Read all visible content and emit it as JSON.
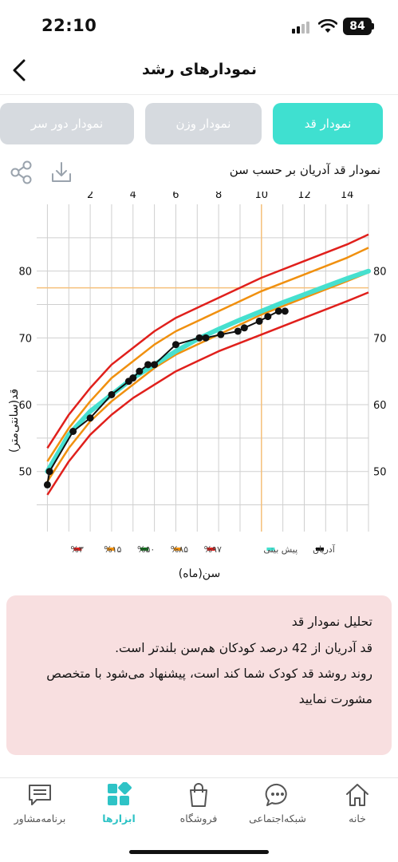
{
  "status_bar": {
    "time": "22:10",
    "battery": "84"
  },
  "header": {
    "title": "نمودارهای رشد"
  },
  "tabs": [
    {
      "label": "نمودار قد",
      "active": true
    },
    {
      "label": "نمودار وزن",
      "active": false
    },
    {
      "label": "نمودار دور سر",
      "active": false
    }
  ],
  "toolbar": {
    "chart_title": "نمودار قد آدریان بر حسب سن"
  },
  "chart_data": {
    "type": "line",
    "xlabel": "سن(ماه)",
    "ylabel": "قد(سانتی‌متر)",
    "x_ticks": [
      2,
      4,
      6,
      8,
      10,
      12,
      14
    ],
    "y_ticks": [
      50,
      60,
      70,
      80
    ],
    "xlim": [
      -0.5,
      15
    ],
    "ylim": [
      41,
      90
    ],
    "grid": true,
    "legend_position": "bottom",
    "marker_x": 10,
    "marker_y": 77.5,
    "percentile_curves": [
      {
        "name": "%۳",
        "color": "#e0201c",
        "points": [
          [
            0,
            46.5
          ],
          [
            1,
            51.5
          ],
          [
            2,
            55.5
          ],
          [
            3,
            58.5
          ],
          [
            4,
            61
          ],
          [
            5,
            63
          ],
          [
            6,
            65
          ],
          [
            8,
            68
          ],
          [
            10,
            70.5
          ],
          [
            12,
            73
          ],
          [
            14,
            75.5
          ],
          [
            15,
            76.8
          ]
        ]
      },
      {
        "name": "%۱۵",
        "color": "#f0900f",
        "points": [
          [
            0,
            48.5
          ],
          [
            1,
            53.5
          ],
          [
            2,
            57.5
          ],
          [
            3,
            60.5
          ],
          [
            4,
            63
          ],
          [
            5,
            65.5
          ],
          [
            6,
            67.5
          ],
          [
            8,
            70.5
          ],
          [
            10,
            73.5
          ],
          [
            12,
            76
          ],
          [
            14,
            78.5
          ],
          [
            15,
            79.8
          ]
        ]
      },
      {
        "name": "%۸۵",
        "color": "#f0900f",
        "points": [
          [
            0,
            51.5
          ],
          [
            1,
            56.5
          ],
          [
            2,
            60.5
          ],
          [
            3,
            64
          ],
          [
            4,
            66.5
          ],
          [
            5,
            69
          ],
          [
            6,
            71
          ],
          [
            8,
            74
          ],
          [
            10,
            77
          ],
          [
            12,
            79.5
          ],
          [
            14,
            82
          ],
          [
            15,
            83.5
          ]
        ]
      },
      {
        "name": "%۹۷",
        "color": "#e0201c",
        "points": [
          [
            0,
            53.5
          ],
          [
            1,
            58.5
          ],
          [
            2,
            62.5
          ],
          [
            3,
            66
          ],
          [
            4,
            68.5
          ],
          [
            5,
            71
          ],
          [
            6,
            73
          ],
          [
            8,
            76
          ],
          [
            10,
            79
          ],
          [
            12,
            81.5
          ],
          [
            14,
            84
          ],
          [
            15,
            85.5
          ]
        ]
      }
    ],
    "series": [
      {
        "name": "%۵۰",
        "color": "#0e6e1a",
        "values": []
      },
      {
        "name": "پیش بینی",
        "color": "#46e0cf",
        "points": [
          [
            0,
            50
          ],
          [
            1,
            55.5
          ],
          [
            2,
            59
          ],
          [
            3,
            61.5
          ],
          [
            4,
            64
          ],
          [
            5,
            66
          ],
          [
            6,
            68
          ],
          [
            7,
            69.8
          ],
          [
            8,
            71.3
          ],
          [
            9,
            72.7
          ],
          [
            10,
            74
          ],
          [
            11,
            75.3
          ],
          [
            12,
            76.5
          ],
          [
            13,
            77.7
          ],
          [
            14,
            78.9
          ],
          [
            15,
            80
          ]
        ]
      },
      {
        "name": "آدریان",
        "color": "#111111",
        "points": [
          [
            0,
            48
          ],
          [
            0.1,
            50
          ],
          [
            1.2,
            56
          ],
          [
            2,
            58
          ],
          [
            3,
            61.5
          ],
          [
            3.8,
            63.5
          ],
          [
            4,
            64
          ],
          [
            4.3,
            65
          ],
          [
            4.7,
            66
          ],
          [
            5,
            66
          ],
          [
            6,
            69
          ],
          [
            7.1,
            70
          ],
          [
            7.4,
            70
          ],
          [
            8.1,
            70.5
          ],
          [
            8.9,
            71
          ],
          [
            9.2,
            71.5
          ],
          [
            9.9,
            72.5
          ],
          [
            10.3,
            73.2
          ],
          [
            10.8,
            74
          ],
          [
            11.1,
            74
          ]
        ]
      }
    ],
    "legend": [
      {
        "name": "%۳",
        "color": "#e0201c"
      },
      {
        "name": "%۱۵",
        "color": "#f0900f"
      },
      {
        "name": "%۵۰",
        "color": "#0e6e1a"
      },
      {
        "name": "%۸۵",
        "color": "#f0900f"
      },
      {
        "name": "%۹۷",
        "color": "#e0201c"
      },
      {
        "name": "پیش بینی",
        "color": "#46e0cf"
      },
      {
        "name": "آدریان",
        "color": "#111111"
      }
    ]
  },
  "analysis": {
    "title": "تحلیل نمودار قد",
    "line1": "قد آدریان از 42 درصد کودکان هم‌سن بلندتر است.",
    "line2": "روند روشد قد کودک شما کند است، پیشنهاد می‌شود با متخصص",
    "line3": "مشورت نمایید"
  },
  "bottom_nav": [
    {
      "label": "برنامه‌مشاور",
      "icon": "chat-bubble-icon",
      "active": false
    },
    {
      "label": "ابزارها",
      "icon": "tools-grid-icon",
      "active": true
    },
    {
      "label": "فروشگاه",
      "icon": "shopping-bag-icon",
      "active": false
    },
    {
      "label": "شبکه‌اجتماعی",
      "icon": "social-chat-icon",
      "active": false
    },
    {
      "label": "خانه",
      "icon": "home-icon",
      "active": false
    }
  ],
  "colors": {
    "accent": "#3fe0d0",
    "tab_inactive": "#d6dadf",
    "card_bg": "#f8dfe0",
    "nav_active": "#2ec3c6"
  }
}
